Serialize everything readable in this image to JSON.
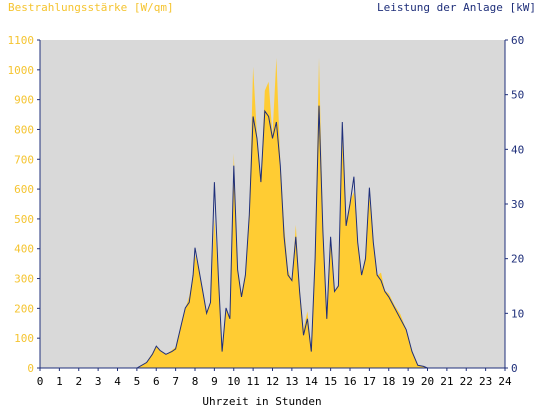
{
  "chart_data": {
    "type": "area",
    "left_title": "Bestrahlungsstärke [W/qm]",
    "right_title": "Leistung der Anlage [kW]",
    "xlabel": "Uhrzeit in Stunden",
    "xlim": [
      0,
      24
    ],
    "ylim_left": [
      0,
      1100
    ],
    "ylim_right": [
      0,
      60
    ],
    "x_ticks": [
      "0",
      "1",
      "2",
      "3",
      "4",
      "5",
      "6",
      "7",
      "8",
      "9",
      "10",
      "11",
      "12",
      "13",
      "14",
      "15",
      "16",
      "17",
      "18",
      "19",
      "20",
      "21",
      "22",
      "23",
      "24"
    ],
    "y_ticks_left": [
      "0",
      "100",
      "200",
      "300",
      "400",
      "500",
      "600",
      "700",
      "800",
      "900",
      "1000",
      "1100"
    ],
    "y_ticks_right": [
      "0",
      "10",
      "20",
      "30",
      "40",
      "50",
      "60"
    ],
    "grid": false,
    "colors": {
      "plot_background": "#d9d9d9",
      "irradiance": "#ffcc33",
      "power_line": "#1f2f7a",
      "left_axis_text": "#f5c430",
      "right_axis_text": "#1f2f7a"
    },
    "series": [
      {
        "name": "Bestrahlungsstärke [W/qm]",
        "axis": "left",
        "x": [
          0,
          5,
          5.5,
          5.8,
          6.0,
          6.2,
          6.5,
          6.8,
          7.0,
          7.3,
          7.5,
          7.7,
          7.9,
          8.0,
          8.2,
          8.4,
          8.6,
          8.8,
          9.0,
          9.2,
          9.4,
          9.6,
          9.8,
          10.0,
          10.2,
          10.4,
          10.6,
          10.8,
          11.0,
          11.2,
          11.4,
          11.6,
          11.8,
          12.0,
          12.2,
          12.4,
          12.6,
          12.8,
          13.0,
          13.2,
          13.4,
          13.6,
          13.8,
          14.0,
          14.2,
          14.4,
          14.6,
          14.8,
          15.0,
          15.2,
          15.4,
          15.6,
          15.8,
          16.0,
          16.2,
          16.4,
          16.6,
          16.8,
          17.0,
          17.2,
          17.4,
          17.6,
          17.8,
          18.0,
          18.3,
          18.6,
          18.9,
          19.2,
          19.5,
          19.8,
          20.0,
          24
        ],
        "values": [
          0,
          0,
          20,
          50,
          75,
          60,
          45,
          60,
          70,
          150,
          200,
          240,
          310,
          380,
          330,
          260,
          190,
          220,
          500,
          300,
          60,
          200,
          160,
          720,
          330,
          250,
          320,
          520,
          1010,
          780,
          620,
          930,
          960,
          780,
          1040,
          690,
          480,
          330,
          290,
          480,
          270,
          130,
          190,
          70,
          380,
          1040,
          480,
          180,
          440,
          260,
          280,
          780,
          490,
          560,
          590,
          430,
          310,
          380,
          580,
          430,
          310,
          320,
          260,
          250,
          210,
          180,
          130,
          60,
          10,
          5,
          0,
          0
        ]
      },
      {
        "name": "Leistung der Anlage [kW]",
        "axis": "right",
        "x": [
          0,
          5,
          5.5,
          5.8,
          6.0,
          6.2,
          6.5,
          6.8,
          7.0,
          7.3,
          7.5,
          7.7,
          7.9,
          8.0,
          8.2,
          8.4,
          8.6,
          8.8,
          9.0,
          9.2,
          9.4,
          9.6,
          9.8,
          10.0,
          10.2,
          10.4,
          10.6,
          10.8,
          11.0,
          11.2,
          11.4,
          11.6,
          11.8,
          12.0,
          12.2,
          12.4,
          12.6,
          12.8,
          13.0,
          13.2,
          13.4,
          13.6,
          13.8,
          14.0,
          14.2,
          14.4,
          14.6,
          14.8,
          15.0,
          15.2,
          15.4,
          15.6,
          15.8,
          16.0,
          16.2,
          16.4,
          16.6,
          16.8,
          17.0,
          17.2,
          17.4,
          17.6,
          17.8,
          18.0,
          18.3,
          18.6,
          18.9,
          19.2,
          19.5,
          19.8,
          20.0,
          24
        ],
        "values": [
          0,
          0,
          1,
          2.5,
          4,
          3.2,
          2.5,
          3,
          3.5,
          8,
          11,
          12,
          17,
          22,
          18,
          14,
          10,
          12,
          34,
          17,
          3,
          11,
          9,
          37,
          18,
          13,
          17,
          28,
          46,
          42,
          34,
          47,
          46,
          42,
          45,
          37,
          24,
          17,
          16,
          24,
          14,
          6,
          9,
          3,
          20,
          48,
          25,
          9,
          24,
          14,
          15,
          45,
          26,
          30,
          35,
          23,
          17,
          20,
          33,
          23,
          17,
          16,
          14,
          13,
          11,
          9,
          7,
          3,
          0.5,
          0.3,
          0,
          0
        ]
      }
    ]
  }
}
